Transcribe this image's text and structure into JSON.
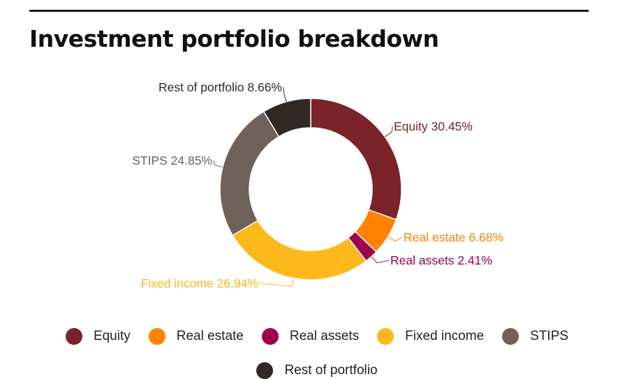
{
  "title": "Investment portfolio breakdown",
  "chart_data": {
    "type": "pie",
    "variant": "donut",
    "title": "Investment portfolio breakdown",
    "slices": [
      {
        "name": "Equity",
        "value": 30.45,
        "label": "Equity 30.45%",
        "color": "#7a2328"
      },
      {
        "name": "Real estate",
        "value": 6.68,
        "label": "Real estate 6.68%",
        "color": "#ff8200"
      },
      {
        "name": "Real assets",
        "value": 2.41,
        "label": "Real assets 2.41%",
        "color": "#a1004d"
      },
      {
        "name": "Fixed income",
        "value": 26.94,
        "label": "Fixed income 26.94%",
        "color": "#ffb81c"
      },
      {
        "name": "STIPS",
        "value": 24.85,
        "label": "STIPS 24.85%",
        "color": "#6f625a"
      },
      {
        "name": "Rest of portfolio",
        "value": 8.66,
        "label": "Rest of portfolio 8.66%",
        "color": "#312826"
      }
    ],
    "legend_position": "bottom"
  },
  "legend": [
    {
      "label": "Equity",
      "color": "#7a2328"
    },
    {
      "label": "Real estate",
      "color": "#ff8200"
    },
    {
      "label": "Real assets",
      "color": "#a1004d"
    },
    {
      "label": "Fixed income",
      "color": "#ffb81c"
    },
    {
      "label": "STIPS",
      "color": "#6f625a"
    },
    {
      "label": "Rest of portfolio",
      "color": "#312826"
    }
  ]
}
